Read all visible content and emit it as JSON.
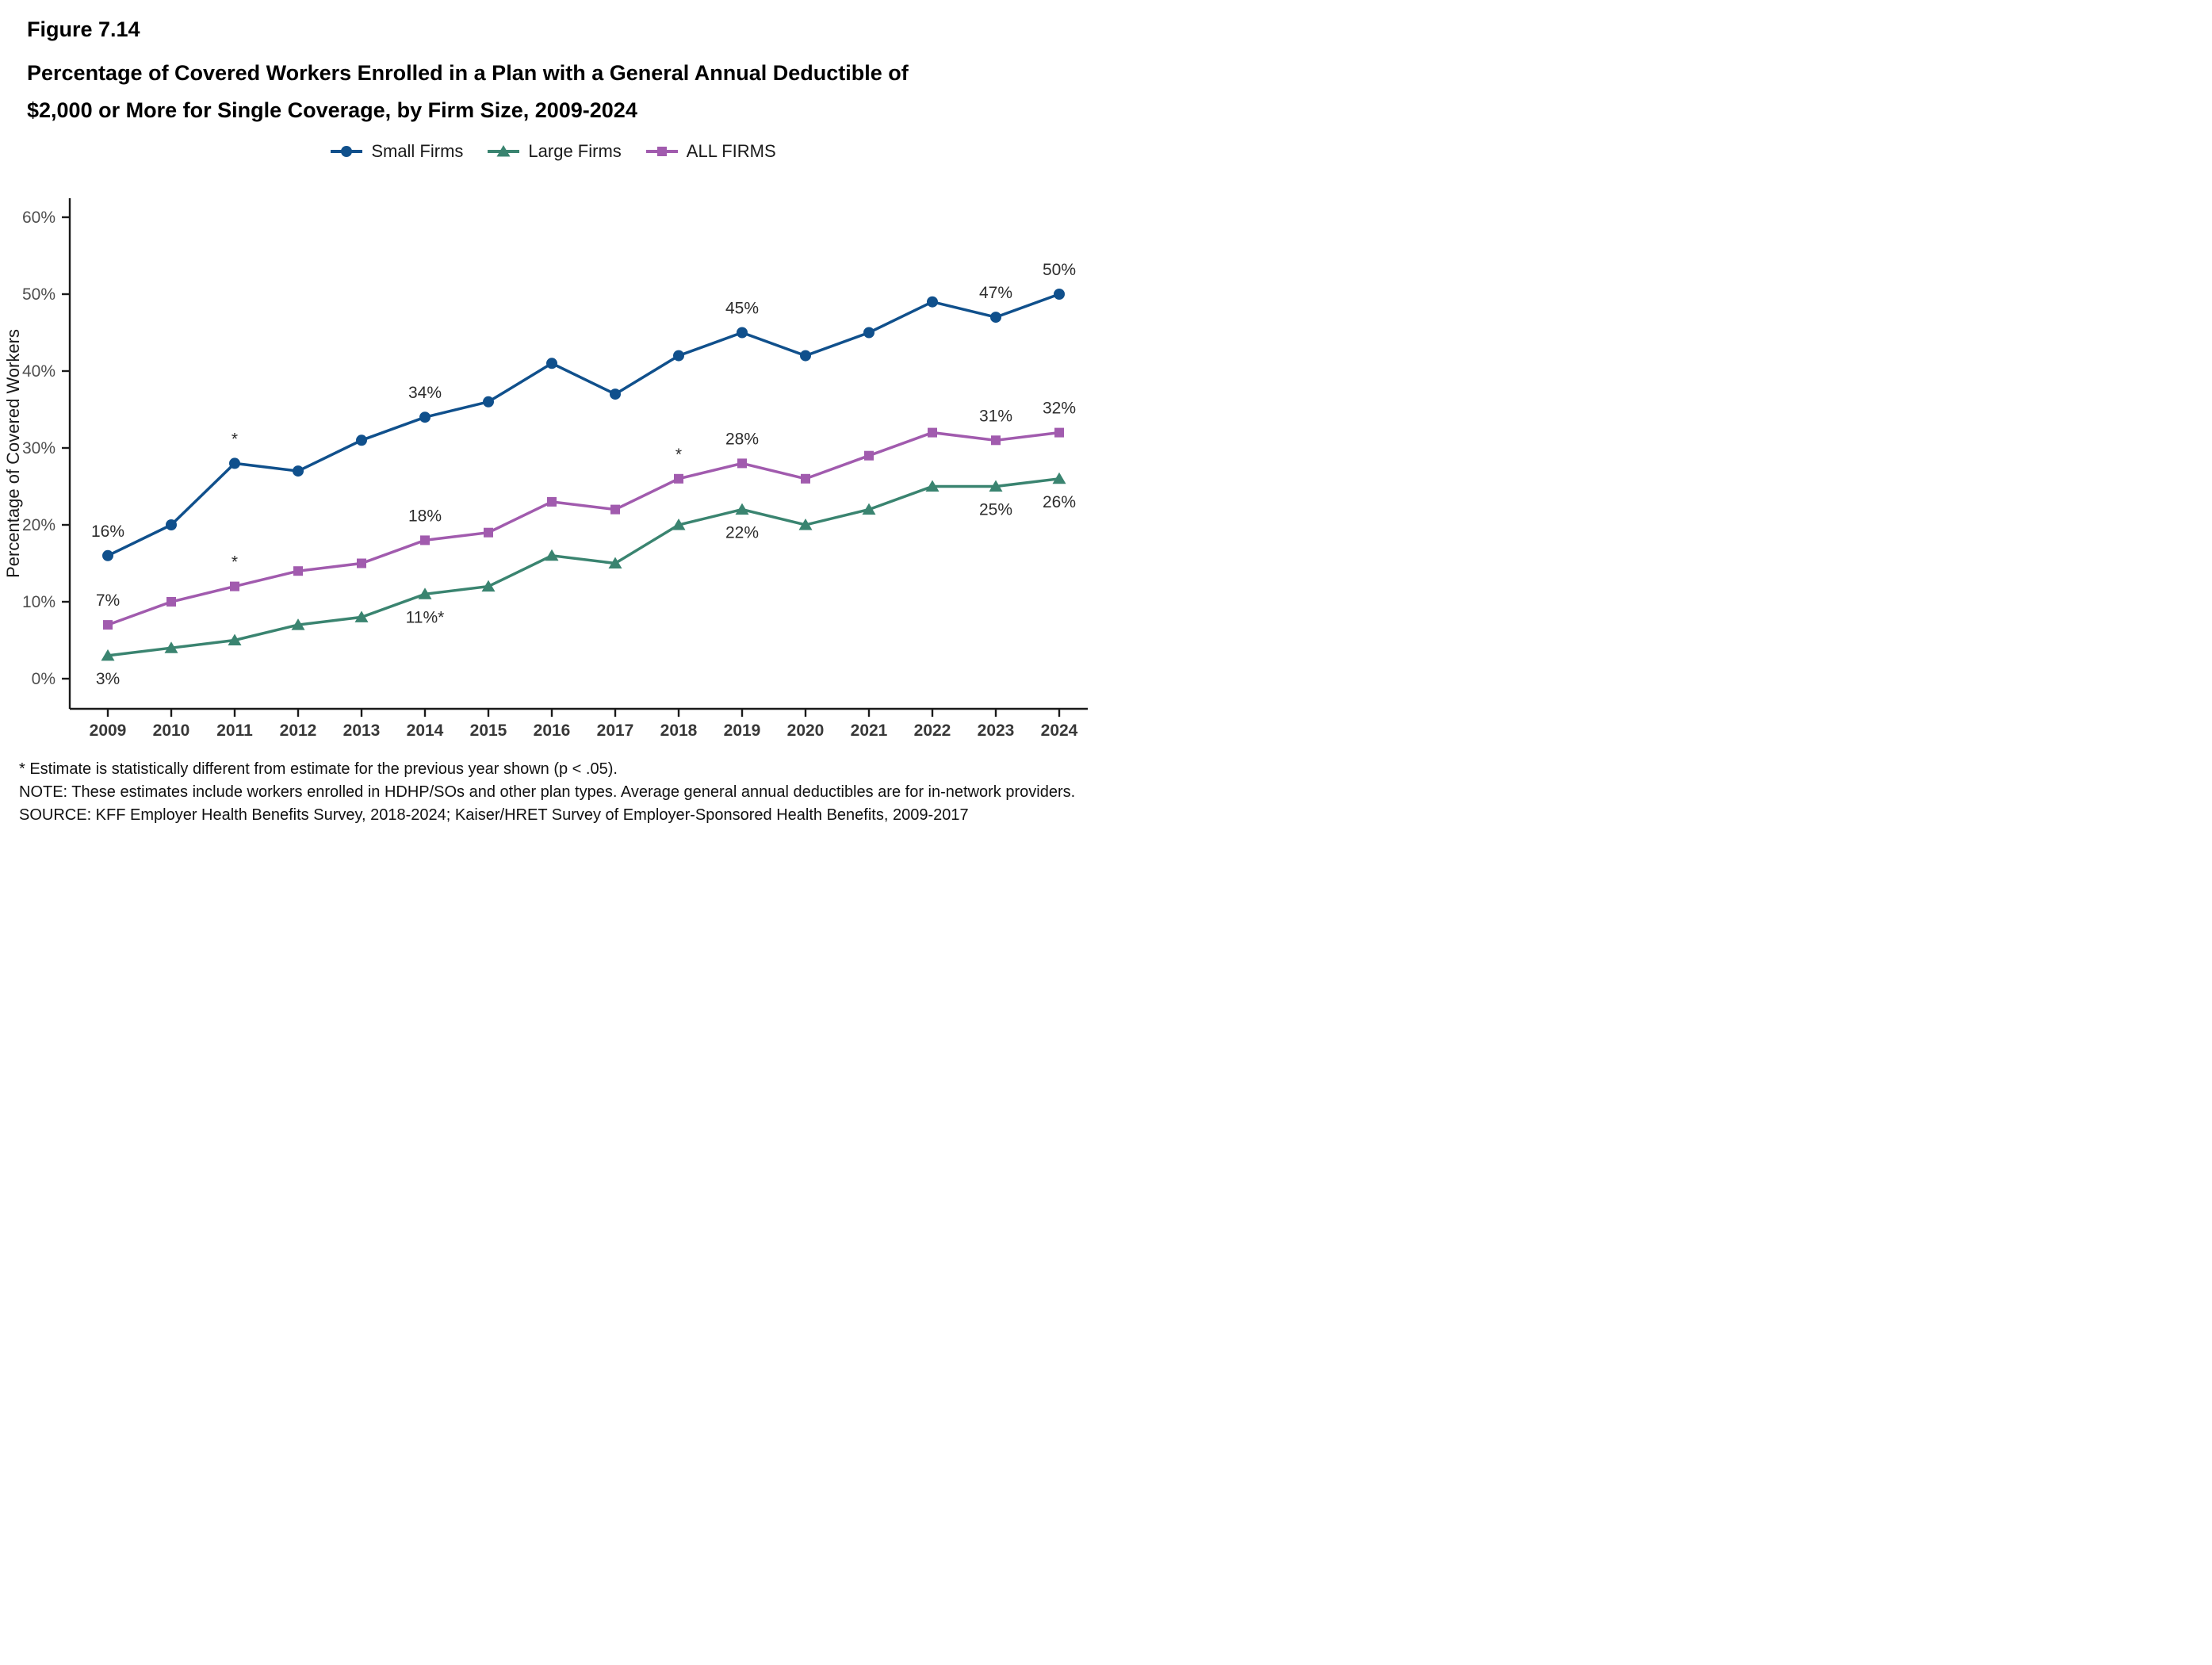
{
  "figure": {
    "label": "Figure 7.14",
    "title_lines": [
      "Percentage of Covered Workers Enrolled in a Plan with a General Annual Deductible of",
      "$2,000 or More for Single Coverage, by Firm Size, 2009-2024"
    ]
  },
  "chart_data": {
    "type": "line",
    "title": "Percentage of Covered Workers Enrolled in a Plan with a General Annual Deductible of $2,000 or More for Single Coverage, by Firm Size, 2009-2024",
    "categories": [
      "2009",
      "2010",
      "2011",
      "2012",
      "2013",
      "2014",
      "2015",
      "2016",
      "2017",
      "2018",
      "2019",
      "2020",
      "2021",
      "2022",
      "2023",
      "2024"
    ],
    "ylabel": "Percentage of Covered Workers",
    "xlabel": "",
    "ylim": [
      0,
      63
    ],
    "grid": false,
    "legend_position": "top-center",
    "ytick_values": [
      0,
      10,
      20,
      30,
      40,
      50,
      60
    ],
    "ytick_labels": [
      "0%",
      "10%",
      "20%",
      "30%",
      "40%",
      "50%",
      "60%"
    ],
    "series": [
      {
        "name": "Small Firms",
        "color": "#10508C",
        "marker": "circle",
        "values": [
          16,
          20,
          28,
          27,
          31,
          34,
          36,
          41,
          37,
          42,
          45,
          42,
          45,
          49,
          47,
          50
        ],
        "point_labels": [
          {
            "year": "2009",
            "text": "16%",
            "pos": "above"
          },
          {
            "year": "2011",
            "text": "*",
            "pos": "above"
          },
          {
            "year": "2014",
            "text": "34%",
            "pos": "above"
          },
          {
            "year": "2019",
            "text": "45%",
            "pos": "above"
          },
          {
            "year": "2023",
            "text": "47%",
            "pos": "above"
          },
          {
            "year": "2024",
            "text": "50%",
            "pos": "above"
          }
        ]
      },
      {
        "name": "Large Firms",
        "color": "#3A8470",
        "marker": "triangle",
        "values": [
          3,
          4,
          5,
          7,
          8,
          11,
          12,
          16,
          15,
          20,
          22,
          20,
          22,
          25,
          25,
          26
        ],
        "point_labels": [
          {
            "year": "2009",
            "text": "3%",
            "pos": "below"
          },
          {
            "year": "2014",
            "text": "11%*",
            "pos": "below"
          },
          {
            "year": "2019",
            "text": "22%",
            "pos": "below"
          },
          {
            "year": "2023",
            "text": "25%",
            "pos": "below"
          },
          {
            "year": "2024",
            "text": "26%",
            "pos": "below"
          }
        ]
      },
      {
        "name": "ALL FIRMS",
        "color": "#A15BAE",
        "marker": "square",
        "values": [
          7,
          10,
          12,
          14,
          15,
          18,
          19,
          23,
          22,
          26,
          28,
          26,
          29,
          32,
          31,
          32
        ],
        "point_labels": [
          {
            "year": "2009",
            "text": "7%",
            "pos": "above"
          },
          {
            "year": "2011",
            "text": "*",
            "pos": "above"
          },
          {
            "year": "2014",
            "text": "18%",
            "pos": "above"
          },
          {
            "year": "2018",
            "text": "*",
            "pos": "above"
          },
          {
            "year": "2019",
            "text": "28%",
            "pos": "above"
          },
          {
            "year": "2023",
            "text": "31%",
            "pos": "above"
          },
          {
            "year": "2024",
            "text": "32%",
            "pos": "above"
          }
        ]
      }
    ]
  },
  "footnotes": [
    "* Estimate is statistically different from estimate for the previous year shown (p < .05).",
    "NOTE: These estimates include workers enrolled in HDHP/SOs and other plan types. Average general annual deductibles are for in-network providers.",
    "SOURCE: KFF Employer Health Benefits Survey, 2018-2024; Kaiser/HRET Survey of Employer-Sponsored Health Benefits, 2009-2017"
  ]
}
